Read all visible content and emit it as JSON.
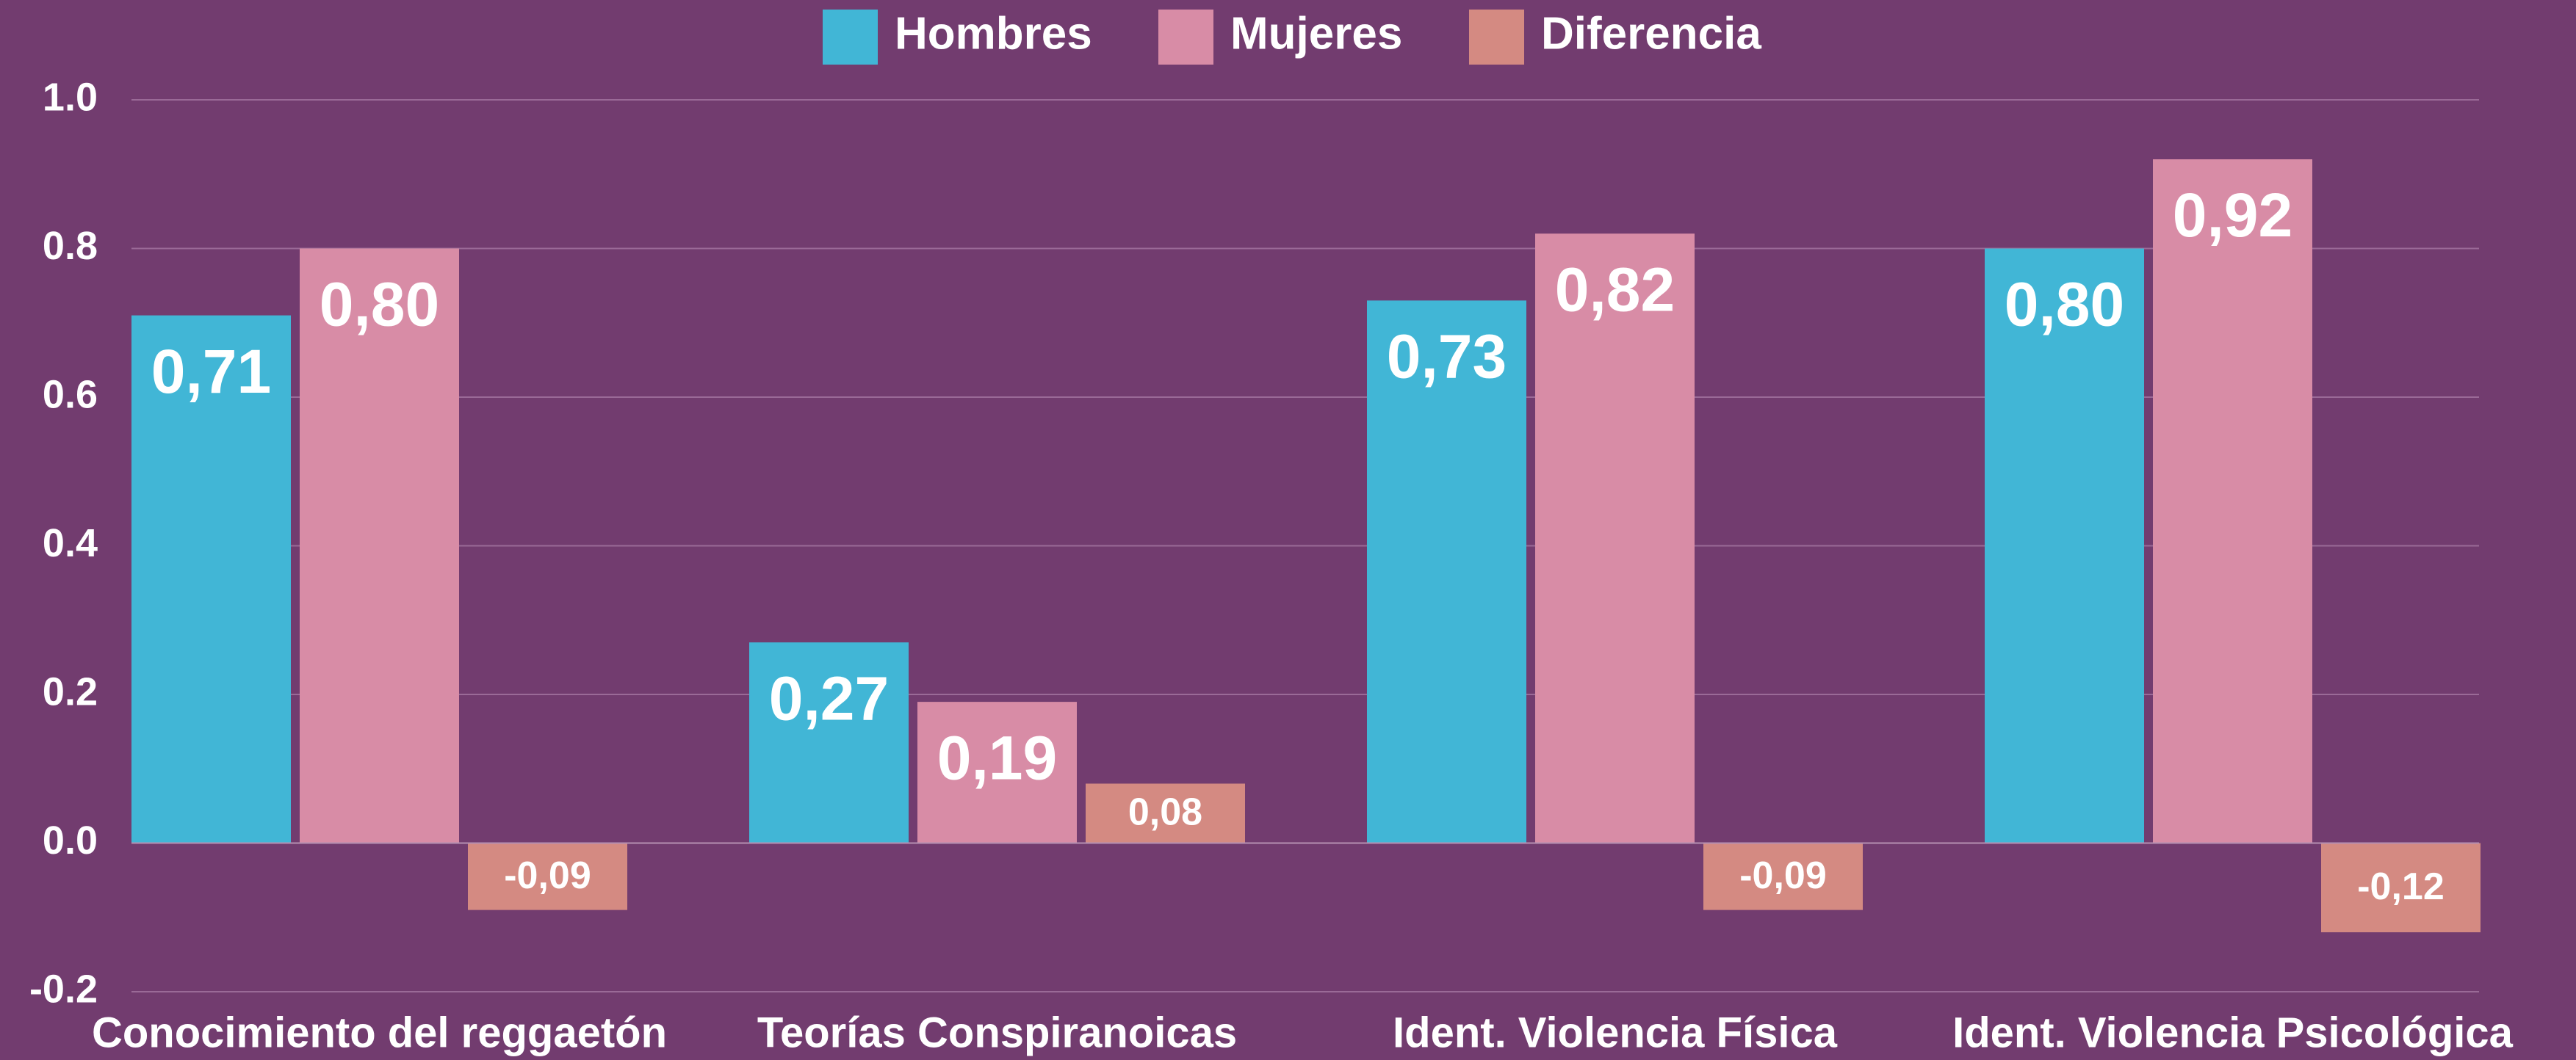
{
  "chart_data": {
    "type": "bar",
    "categories": [
      "Conocimiento del reggaetón",
      "Teorías Conspiranoicas",
      "Ident. Violencia Física",
      "Ident. Violencia Psicológica"
    ],
    "series": [
      {
        "name": "Hombres",
        "color": "#41b6d6",
        "values": [
          0.71,
          0.27,
          0.73,
          0.8
        ],
        "value_labels": [
          "0,71",
          "0,27",
          "0,73",
          "0,80"
        ]
      },
      {
        "name": "Mujeres",
        "color": "#d88ca6",
        "values": [
          0.8,
          0.19,
          0.82,
          0.92
        ],
        "value_labels": [
          "0,80",
          "0,19",
          "0,82",
          "0,92"
        ]
      },
      {
        "name": "Diferencia",
        "color": "#d48a82",
        "values": [
          -0.09,
          0.08,
          -0.09,
          -0.12
        ],
        "value_labels": [
          "-0,09",
          "0,08",
          "-0,09",
          "-0,12"
        ]
      }
    ],
    "ylim": [
      -0.2,
      1.0
    ],
    "yticks": [
      {
        "value": -0.2,
        "label": "-0.2"
      },
      {
        "value": 0,
        "label": "0.0"
      },
      {
        "value": 0.2,
        "label": "0.2"
      },
      {
        "value": 0.4,
        "label": "0.4"
      },
      {
        "value": 0.6,
        "label": "0.6"
      },
      {
        "value": 0.8,
        "label": "0.8"
      },
      {
        "value": 1.0,
        "label": "1.0"
      }
    ],
    "grid": true,
    "legend": "top",
    "background": "#723c6f"
  }
}
